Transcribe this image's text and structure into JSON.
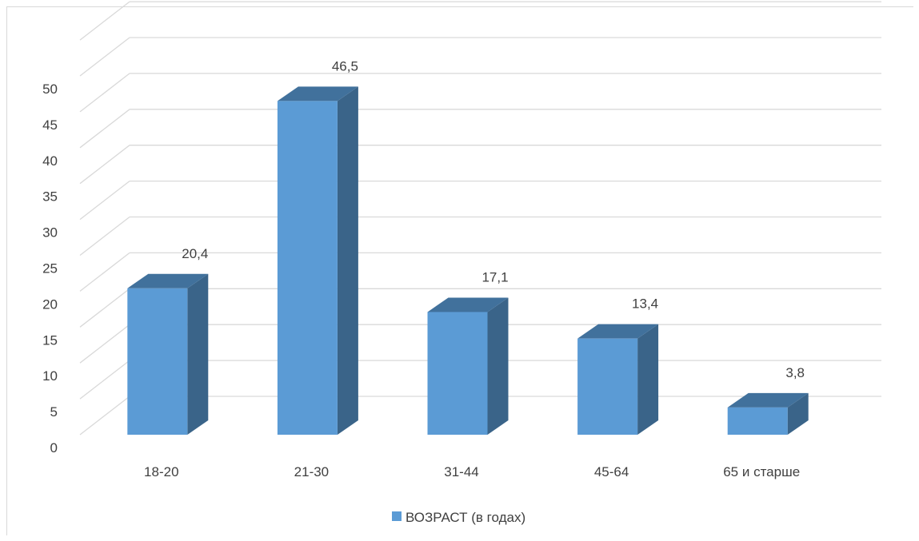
{
  "chart_data": {
    "type": "bar",
    "style": "3d-column",
    "categories": [
      "18-20",
      "21-30",
      "31-44",
      "45-64",
      "65 и старше"
    ],
    "series": [
      {
        "name": "ВОЗРАСТ (в годах)",
        "values": [
          20.4,
          46.5,
          17.1,
          13.4,
          3.8
        ],
        "color": "#5b9bd5"
      }
    ],
    "data_labels": [
      "20,4",
      "46,5",
      "17,1",
      "13,4",
      "3,8"
    ],
    "yticks": [
      "0",
      "5",
      "10",
      "15",
      "20",
      "25",
      "30",
      "35",
      "40",
      "45",
      "50"
    ],
    "ylim": [
      0,
      55
    ],
    "grid": true,
    "legend_position": "bottom"
  },
  "colors": {
    "bar_front": "#5b9bd5",
    "bar_top": "#41719c",
    "bar_side": "#3a6489",
    "grid": "#d9d9d9",
    "text": "#404040"
  }
}
